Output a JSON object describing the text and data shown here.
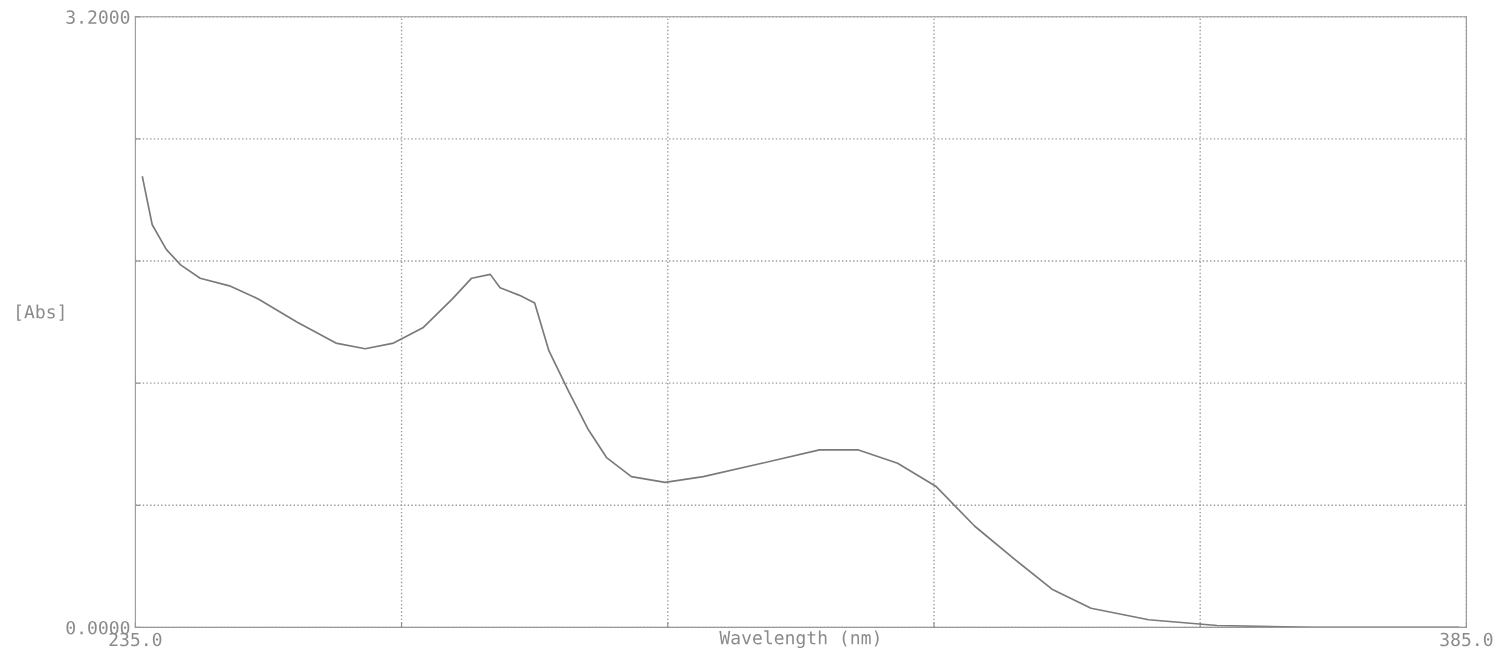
{
  "chart_data": {
    "type": "line",
    "xlabel": "Wavelength (nm)",
    "ylabel": "[Abs]",
    "xlim": [
      235,
      385
    ],
    "ylim": [
      0,
      3.2
    ],
    "xticks": [
      {
        "value": 235,
        "label": "235.0"
      },
      {
        "value": 265,
        "label": null
      },
      {
        "value": 295,
        "label": null
      },
      {
        "value": 325,
        "label": null
      },
      {
        "value": 355,
        "label": null
      },
      {
        "value": 385,
        "label": "385.0"
      }
    ],
    "yticks": [
      {
        "value": 0,
        "label": "0.0000"
      },
      {
        "value": 0.64,
        "label": null
      },
      {
        "value": 1.28,
        "label": null
      },
      {
        "value": 1.92,
        "label": null
      },
      {
        "value": 2.56,
        "label": null
      },
      {
        "value": 3.2,
        "label": "3.2000"
      }
    ],
    "grid": true,
    "marker": "none",
    "line_style": "solid",
    "series": [
      {
        "color": "#7a7a7a",
        "x": [
          235.8,
          236.9,
          238.5,
          240.1,
          242.3,
          245.6,
          248.9,
          253.2,
          257.6,
          260.9,
          264.1,
          267.4,
          270.7,
          272.9,
          275.0,
          276.1,
          278.3,
          280.0,
          281.6,
          283.8,
          286.0,
          288.1,
          290.9,
          294.7,
          299.0,
          305.6,
          312.1,
          316.5,
          320.9,
          325.2,
          329.6,
          334.0,
          338.3,
          342.7,
          349.2,
          356.9,
          367.8,
          384.1
        ],
        "values": [
          2.36,
          2.11,
          1.98,
          1.9,
          1.83,
          1.79,
          1.72,
          1.6,
          1.49,
          1.46,
          1.49,
          1.57,
          1.72,
          1.83,
          1.85,
          1.78,
          1.74,
          1.7,
          1.45,
          1.24,
          1.04,
          0.89,
          0.79,
          0.76,
          0.79,
          0.86,
          0.93,
          0.93,
          0.86,
          0.74,
          0.53,
          0.36,
          0.2,
          0.1,
          0.04,
          0.01,
          0.0,
          0.0
        ]
      }
    ]
  }
}
